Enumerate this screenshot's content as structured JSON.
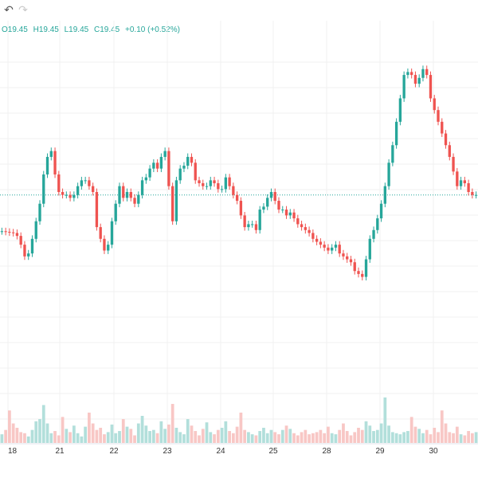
{
  "toolbar": {
    "undo_icon": "undo-icon",
    "redo_icon": "redo-icon",
    "undo_glyph": "↶",
    "redo_glyph": "↷"
  },
  "legend": {
    "open": "O19.45",
    "high": "H19.45",
    "low": "L19.45",
    "close": "C19.45",
    "change": "+0.10 (+0.52%)"
  },
  "colors": {
    "up": "#26a69a",
    "down": "#ef5350",
    "up_volume": "#b2dfdb",
    "down_volume": "#f8c7c5",
    "grid": "#f1f1f1",
    "last_price_line": "#26a69a"
  },
  "chart_data": {
    "type": "line",
    "title": "",
    "xlabel": "",
    "ylabel": "",
    "x_tick_labels": [
      "18",
      "21",
      "22",
      "23",
      "24",
      "25",
      "28",
      "29",
      "30"
    ],
    "y_range": [
      17.2,
      22.1
    ],
    "last_price": 19.45,
    "price_series": [
      {
        "name": "",
        "values": [
          18.83,
          18.82,
          18.81,
          18.8,
          18.75,
          18.6,
          18.4,
          18.45,
          18.7,
          19.0,
          19.3,
          19.8,
          20.1,
          20.2,
          19.8,
          19.5,
          19.45,
          19.45,
          19.4,
          19.45,
          19.6,
          19.7,
          19.7,
          19.6,
          19.5,
          18.9,
          18.7,
          18.5,
          18.6,
          19.0,
          19.3,
          19.6,
          19.4,
          19.5,
          19.4,
          19.3,
          19.45,
          19.7,
          19.75,
          19.9,
          20.0,
          19.9,
          20.1,
          20.2,
          19.6,
          19.0,
          19.7,
          19.9,
          19.95,
          20.1,
          20.0,
          19.7,
          19.65,
          19.6,
          19.6,
          19.7,
          19.65,
          19.55,
          19.55,
          19.75,
          19.6,
          19.45,
          19.35,
          19.1,
          18.9,
          18.95,
          18.95,
          18.85,
          19.2,
          19.25,
          19.4,
          19.5,
          19.35,
          19.2,
          19.2,
          19.1,
          19.15,
          19.05,
          18.95,
          18.9,
          18.85,
          18.8,
          18.7,
          18.65,
          18.6,
          18.55,
          18.5,
          18.55,
          18.6,
          18.45,
          18.4,
          18.35,
          18.3,
          18.15,
          18.1,
          18.05,
          18.35,
          18.7,
          18.85,
          19.05,
          19.3,
          19.6,
          20.0,
          20.3,
          20.7,
          21.1,
          21.5,
          21.55,
          21.5,
          21.35,
          21.45,
          21.6,
          21.5,
          21.1,
          20.9,
          20.7,
          20.5,
          20.3,
          20.1,
          19.85,
          19.6,
          19.7,
          19.65,
          19.5,
          19.45,
          19.45
        ]
      }
    ],
    "volume_range": [
      0,
      100
    ],
    "volume_series": [
      {
        "name": "",
        "values": [
          8,
          12,
          30,
          18,
          14,
          10,
          9,
          6,
          12,
          20,
          22,
          35,
          18,
          9,
          11,
          7,
          24,
          13,
          10,
          16,
          9,
          6,
          15,
          28,
          18,
          12,
          14,
          8,
          10,
          17,
          9,
          11,
          22,
          15,
          13,
          7,
          18,
          25,
          16,
          11,
          12,
          9,
          20,
          13,
          17,
          36,
          14,
          10,
          8,
          22,
          16,
          11,
          7,
          13,
          19,
          10,
          8,
          12,
          14,
          20,
          11,
          9,
          15,
          28,
          12,
          10,
          8,
          7,
          11,
          14,
          9,
          12,
          10,
          8,
          12,
          16,
          13,
          9,
          7,
          10,
          12,
          8,
          9,
          10,
          12,
          9,
          15,
          9,
          8,
          12,
          18,
          11,
          7,
          10,
          14,
          12,
          20,
          16,
          11,
          12,
          18,
          42,
          16,
          10,
          9,
          8,
          10,
          11,
          24,
          15,
          13,
          9,
          12,
          8,
          14,
          10,
          30,
          18,
          10,
          9,
          15,
          8,
          7,
          11,
          9,
          10
        ]
      }
    ],
    "grid": true,
    "legend_placement": "top-left"
  }
}
